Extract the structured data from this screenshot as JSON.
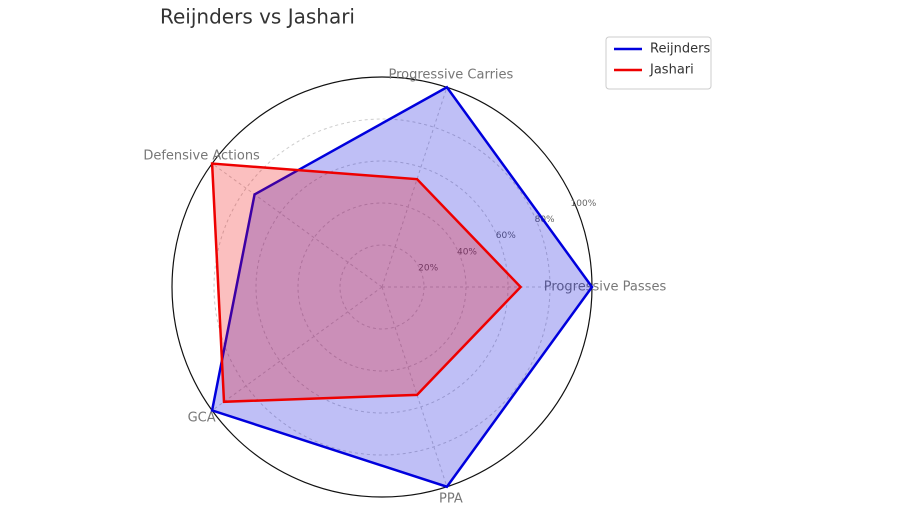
{
  "chart_data": {
    "type": "radar",
    "title": "Reijnders vs Jashari",
    "categories": [
      "Progressive Passes",
      "Progressive Carries",
      "Defensive Actions",
      "GCA",
      "PPA"
    ],
    "series": [
      {
        "name": "Reijnders",
        "color": "#0000dd",
        "values": [
          100,
          100,
          75,
          100,
          100
        ]
      },
      {
        "name": "Jashari",
        "color": "#ee0000",
        "values": [
          66,
          54,
          100,
          93,
          54
        ]
      }
    ],
    "ylim": [
      0,
      100
    ],
    "yticks": [
      {
        "value": 20,
        "label": "20%"
      },
      {
        "value": 40,
        "label": "40%"
      },
      {
        "value": 60,
        "label": "60%"
      },
      {
        "value": 80,
        "label": "80%"
      },
      {
        "value": 100,
        "label": "100%"
      }
    ],
    "grid": true,
    "legend": "upper right"
  }
}
